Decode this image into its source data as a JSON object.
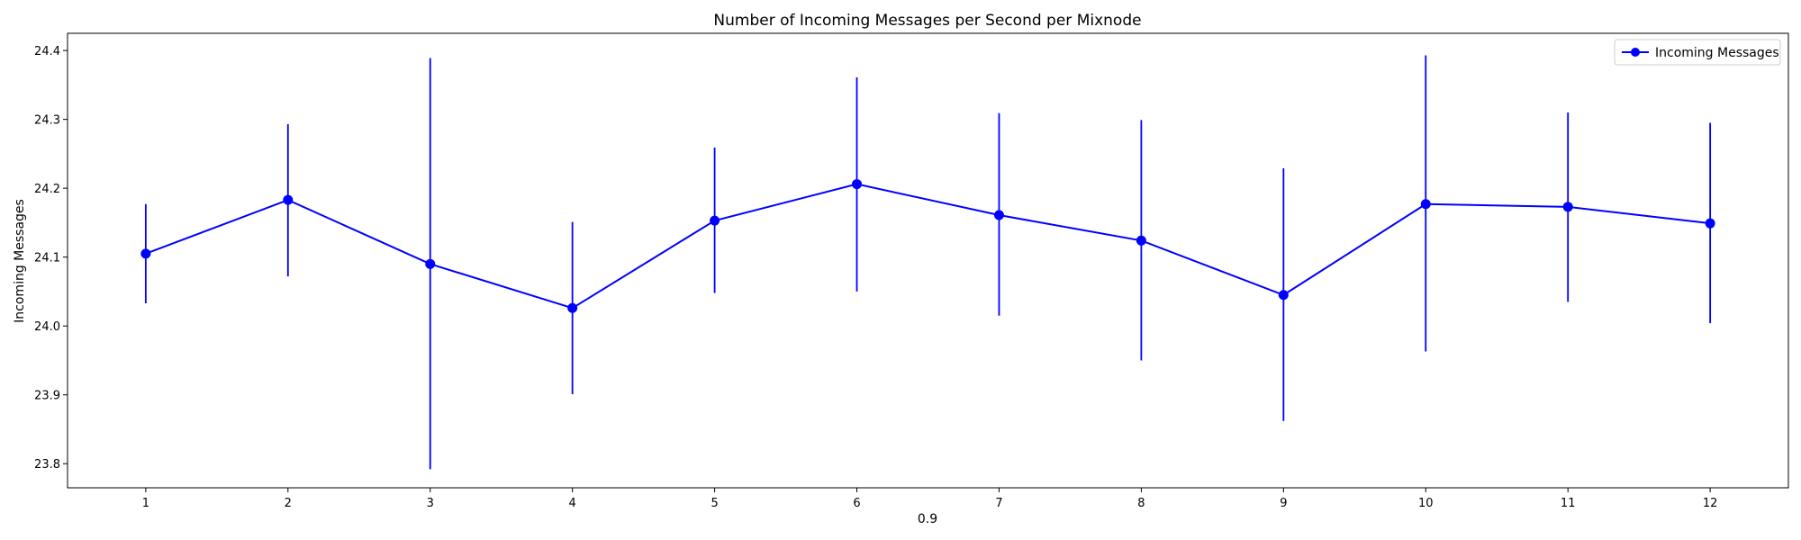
{
  "chart_data": {
    "type": "line",
    "title": "Number of Incoming Messages per Second per Mixnode",
    "xlabel": "0.9",
    "ylabel": "Incoming Messages",
    "x": [
      1,
      2,
      3,
      4,
      5,
      6,
      7,
      8,
      9,
      10,
      11,
      12
    ],
    "xticks": [
      "1",
      "2",
      "3",
      "4",
      "5",
      "6",
      "7",
      "8",
      "9",
      "10",
      "11",
      "12"
    ],
    "xlim": [
      0.45,
      12.55
    ],
    "ylim": [
      23.765,
      24.425
    ],
    "yticks": [
      "23.8",
      "23.9",
      "24.0",
      "24.1",
      "24.2",
      "24.3",
      "24.4"
    ],
    "grid": false,
    "legend_position": "top-right",
    "series": [
      {
        "name": "Incoming Messages",
        "color": "#0000ff",
        "marker": "circle",
        "values": [
          24.105,
          24.183,
          24.09,
          24.026,
          24.153,
          24.206,
          24.161,
          24.124,
          24.045,
          24.177,
          24.173,
          24.149
        ],
        "err_upper": [
          24.177,
          24.293,
          24.389,
          24.151,
          24.259,
          24.361,
          24.309,
          24.299,
          24.229,
          24.393,
          24.31,
          24.295
        ],
        "err_lower": [
          24.033,
          24.072,
          23.792,
          23.901,
          24.048,
          24.05,
          24.015,
          23.95,
          23.862,
          23.963,
          24.035,
          24.004
        ]
      }
    ]
  }
}
